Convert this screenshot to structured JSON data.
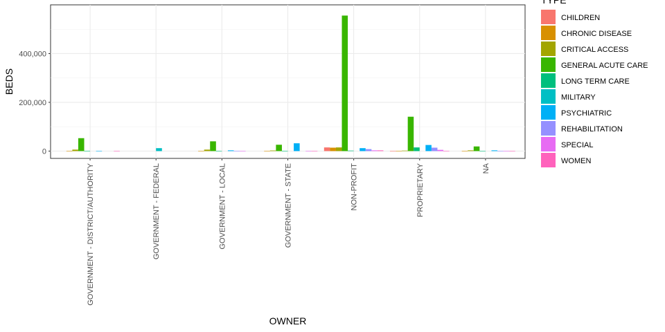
{
  "chart_data": {
    "type": "bar",
    "xlabel": "OWNER",
    "ylabel": "BEDS",
    "ylim": [
      -30000,
      600000
    ],
    "yticks": [
      0,
      200000,
      400000
    ],
    "ytick_labels": [
      "0",
      "200,000",
      "400,000"
    ],
    "grid": true,
    "legend_title": "TYPE",
    "legend_position": "right",
    "categories": [
      "GOVERNMENT - DISTRICT/AUTHORITY",
      "GOVERNMENT - FEDERAL",
      "GOVERNMENT - LOCAL",
      "GOVERNMENT - STATE",
      "NON-PROFIT",
      "PROPRIETARY",
      "NA"
    ],
    "series": [
      {
        "name": "CHILDREN",
        "color": "#F8766D",
        "values": [
          0,
          0,
          0,
          0,
          15000,
          500,
          0
        ]
      },
      {
        "name": "CHRONIC DISEASE",
        "color": "#D89000",
        "values": [
          500,
          0,
          300,
          300,
          14000,
          600,
          300
        ]
      },
      {
        "name": "CRITICAL ACCESS",
        "color": "#A3A500",
        "values": [
          6000,
          0,
          6000,
          2500,
          15000,
          2000,
          3000
        ]
      },
      {
        "name": "GENERAL ACUTE CARE",
        "color": "#39B600",
        "values": [
          53000,
          0,
          40000,
          26000,
          556000,
          141000,
          19000
        ]
      },
      {
        "name": "LONG TERM CARE",
        "color": "#00BF7D",
        "values": [
          500,
          0,
          500,
          500,
          2000,
          15000,
          500
        ]
      },
      {
        "name": "MILITARY",
        "color": "#00BFC4",
        "values": [
          0,
          12000,
          0,
          0,
          0,
          0,
          0
        ]
      },
      {
        "name": "PSYCHIATRIC",
        "color": "#00B0F6",
        "values": [
          300,
          0,
          3000,
          32000,
          12000,
          25000,
          3000
        ]
      },
      {
        "name": "REHABILITATION",
        "color": "#9590FF",
        "values": [
          0,
          0,
          300,
          0,
          8000,
          14000,
          500
        ]
      },
      {
        "name": "SPECIAL",
        "color": "#E76BF3",
        "values": [
          0,
          0,
          300,
          300,
          3000,
          5000,
          300
        ]
      },
      {
        "name": "WOMEN",
        "color": "#FF62BC",
        "values": [
          300,
          0,
          0,
          300,
          3000,
          500,
          300
        ]
      }
    ]
  }
}
